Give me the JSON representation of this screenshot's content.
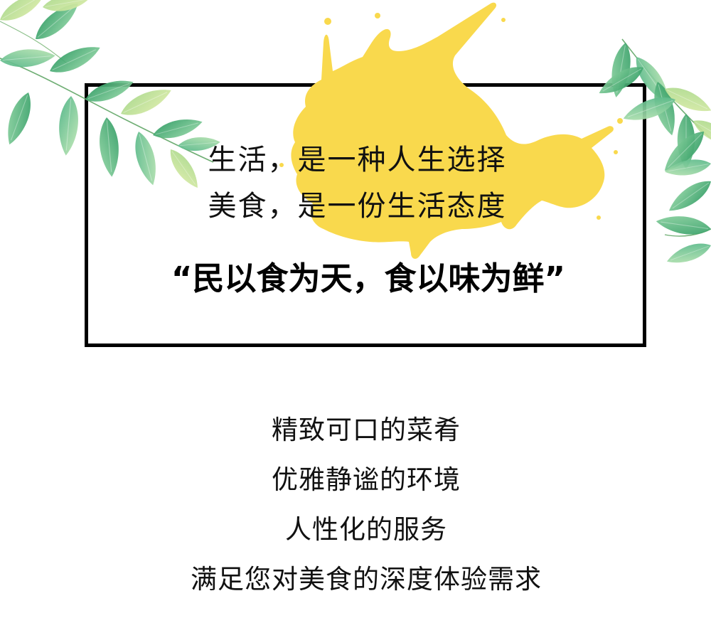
{
  "intro": {
    "line1": "生活，是一种人生选择",
    "line2": "美食，是一份生活态度"
  },
  "headline": "“民以食为天，食以味为鲜”",
  "features": [
    "精致可口的菜肴",
    "优雅静谧的环境",
    "人性化的服务",
    "满足您对美食的深度体验需求"
  ],
  "colors": {
    "splash": "#F9D94D",
    "frame": "#000000",
    "text": "#111111",
    "leaf_dark": "#2E9B62",
    "leaf_light": "#A9D88A"
  }
}
